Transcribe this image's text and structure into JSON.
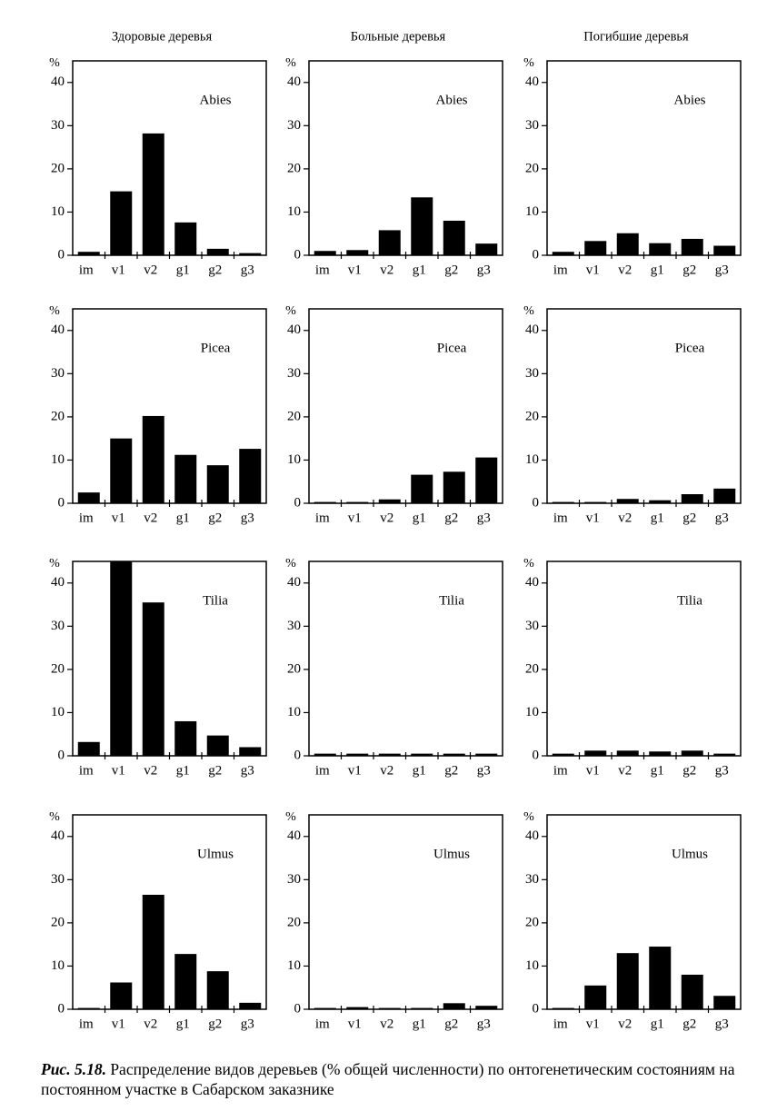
{
  "column_titles": [
    "Здоровые деревья",
    "Больные деревья",
    "Погибшие деревья"
  ],
  "caption_label": "Рис. 5.18.",
  "caption_text": "Распределение видов деревьев (% общей численности) по онтогенетическим состояниям на постоянном участке в Сабарском заказнике",
  "chart_data": [
    {
      "type": "bar",
      "title": "Abies",
      "ylabel": "%",
      "categories": [
        "im",
        "v1",
        "v2",
        "g1",
        "g2",
        "g3"
      ],
      "values": [
        0.8,
        14.8,
        28.2,
        7.6,
        1.5,
        0.5
      ],
      "color": "#000000",
      "ylim": [
        0,
        45
      ],
      "yticks": [
        0,
        10,
        20,
        30,
        40
      ]
    },
    {
      "type": "bar",
      "title": "Abies",
      "ylabel": "%",
      "categories": [
        "im",
        "v1",
        "v2",
        "g1",
        "g2",
        "g3"
      ],
      "values": [
        1,
        1.2,
        5.8,
        13.4,
        8,
        2.7
      ],
      "color": "#000000",
      "ylim": [
        0,
        45
      ],
      "yticks": [
        0,
        10,
        20,
        30,
        40
      ]
    },
    {
      "type": "bar",
      "title": "Abies",
      "ylabel": "%",
      "categories": [
        "im",
        "v1",
        "v2",
        "g1",
        "g2",
        "g3"
      ],
      "values": [
        0.8,
        3.3,
        5.1,
        2.8,
        3.8,
        2.2
      ],
      "color": "#000000",
      "ylim": [
        0,
        45
      ],
      "yticks": [
        0,
        10,
        20,
        30,
        40
      ]
    },
    {
      "type": "bar",
      "title": "Picea",
      "ylabel": "%",
      "categories": [
        "im",
        "v1",
        "v2",
        "g1",
        "g2",
        "g3"
      ],
      "values": [
        2.5,
        15,
        20.2,
        11.2,
        8.8,
        12.6
      ],
      "color": "#000000",
      "ylim": [
        0,
        45
      ],
      "yticks": [
        0,
        10,
        20,
        30,
        40
      ]
    },
    {
      "type": "bar",
      "title": "Picea",
      "ylabel": "%",
      "categories": [
        "im",
        "v1",
        "v2",
        "g1",
        "g2",
        "g3"
      ],
      "values": [
        0.3,
        0.3,
        0.9,
        6.6,
        7.3,
        10.6
      ],
      "color": "#000000",
      "ylim": [
        0,
        45
      ],
      "yticks": [
        0,
        10,
        20,
        30,
        40
      ]
    },
    {
      "type": "bar",
      "title": "Picea",
      "ylabel": "%",
      "categories": [
        "im",
        "v1",
        "v2",
        "g1",
        "g2",
        "g3"
      ],
      "values": [
        0.3,
        0.3,
        1,
        0.7,
        2.1,
        3.4
      ],
      "color": "#000000",
      "ylim": [
        0,
        45
      ],
      "yticks": [
        0,
        10,
        20,
        30,
        40
      ]
    },
    {
      "type": "bar",
      "title": "Tilia",
      "ylabel": "%",
      "categories": [
        "im",
        "v1",
        "v2",
        "g1",
        "g2",
        "g3"
      ],
      "values": [
        3.2,
        45,
        35.5,
        8,
        4.7,
        2
      ],
      "color": "#000000",
      "ylim": [
        0,
        45
      ],
      "yticks": [
        0,
        10,
        20,
        30,
        40
      ]
    },
    {
      "type": "bar",
      "title": "Tilia",
      "ylabel": "%",
      "categories": [
        "im",
        "v1",
        "v2",
        "g1",
        "g2",
        "g3"
      ],
      "values": [
        0.5,
        0.5,
        0.5,
        0.5,
        0.5,
        0.5
      ],
      "color": "#000000",
      "ylim": [
        0,
        45
      ],
      "yticks": [
        0,
        10,
        20,
        30,
        40
      ]
    },
    {
      "type": "bar",
      "title": "Tilia",
      "ylabel": "%",
      "categories": [
        "im",
        "v1",
        "v2",
        "g1",
        "g2",
        "g3"
      ],
      "values": [
        0.5,
        1.2,
        1.2,
        1,
        1.2,
        0.5
      ],
      "color": "#000000",
      "ylim": [
        0,
        45
      ],
      "yticks": [
        0,
        10,
        20,
        30,
        40
      ]
    },
    {
      "type": "bar",
      "title": "Ulmus",
      "ylabel": "%",
      "categories": [
        "im",
        "v1",
        "v2",
        "g1",
        "g2",
        "g3"
      ],
      "values": [
        0.3,
        6.2,
        26.5,
        12.8,
        8.8,
        1.5
      ],
      "color": "#000000",
      "ylim": [
        0,
        45
      ],
      "yticks": [
        0,
        10,
        20,
        30,
        40
      ]
    },
    {
      "type": "bar",
      "title": "Ulmus",
      "ylabel": "%",
      "categories": [
        "im",
        "v1",
        "v2",
        "g1",
        "g2",
        "g3"
      ],
      "values": [
        0.3,
        0.5,
        0.3,
        0.3,
        1.4,
        0.8
      ],
      "color": "#000000",
      "ylim": [
        0,
        45
      ],
      "yticks": [
        0,
        10,
        20,
        30,
        40
      ]
    },
    {
      "type": "bar",
      "title": "Ulmus",
      "ylabel": "%",
      "categories": [
        "im",
        "v1",
        "v2",
        "g1",
        "g2",
        "g3"
      ],
      "values": [
        0.3,
        5.5,
        13,
        14.5,
        8,
        3.1
      ],
      "color": "#000000",
      "ylim": [
        0,
        45
      ],
      "yticks": [
        0,
        10,
        20,
        30,
        40
      ]
    }
  ]
}
